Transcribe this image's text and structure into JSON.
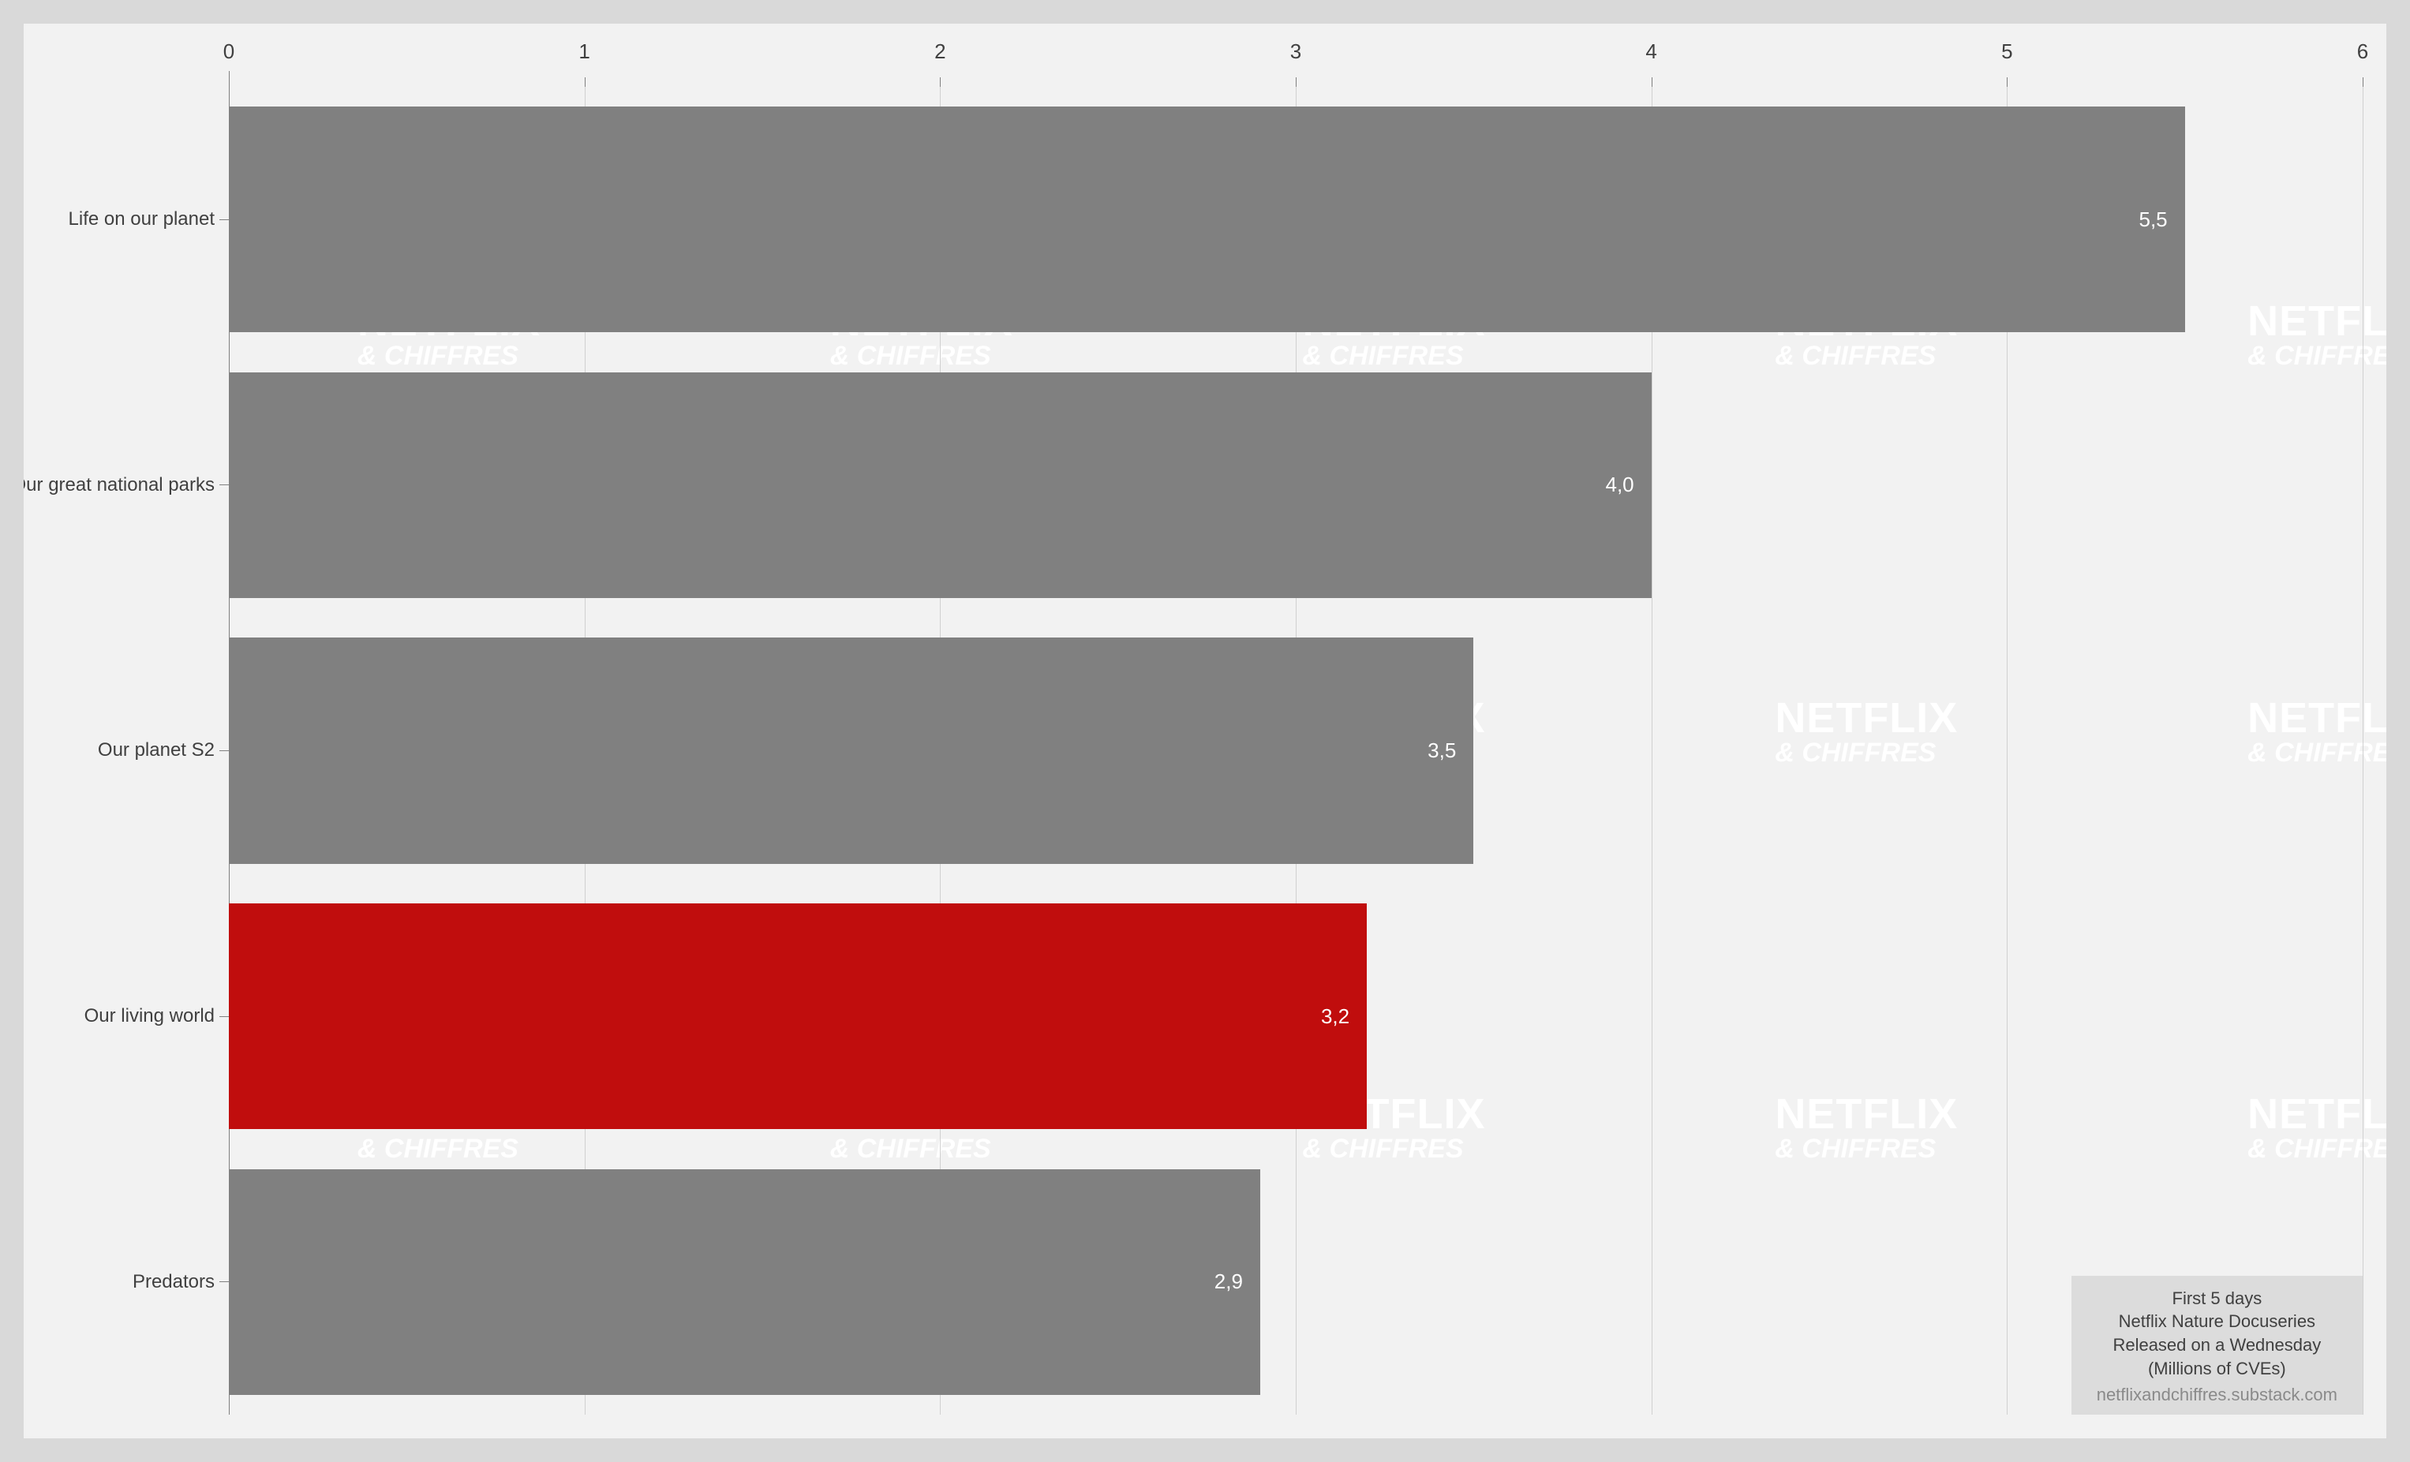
{
  "chart": {
    "type": "bar-horizontal",
    "xlim": [
      0,
      6
    ],
    "xtick_step": 1,
    "xticks": [
      "0",
      "1",
      "2",
      "3",
      "4",
      "5",
      "6"
    ],
    "tick_fontsize": 26,
    "label_fontsize": 24,
    "value_fontsize": 26,
    "background_color": "#f2f2f2",
    "outer_background": "#d9d9d9",
    "grid_color": "#d0d0d0",
    "axis_color": "#808080",
    "text_color": "#404040",
    "value_text_color": "#ffffff",
    "bar_default_color": "#808080",
    "bar_highlight_color": "#c00d0d",
    "bars": [
      {
        "label": "Life on our planet",
        "value": 5.5,
        "value_label": "5,5",
        "color": "#808080"
      },
      {
        "label": "Our great national parks",
        "value": 4.0,
        "value_label": "4,0",
        "color": "#808080"
      },
      {
        "label": "Our planet S2",
        "value": 3.5,
        "value_label": "3,5",
        "color": "#808080"
      },
      {
        "label": "Our living world",
        "value": 3.2,
        "value_label": "3,2",
        "color": "#c00d0d"
      },
      {
        "label": "Predators",
        "value": 2.9,
        "value_label": "2,9",
        "color": "#808080"
      }
    ],
    "caption": {
      "lines": [
        "First 5 days",
        "Netflix Nature Docuseries",
        "Released on a Wednesday",
        "(Millions of CVEs)"
      ],
      "source": "netflixandchiffres.substack.com",
      "fontsize": 22,
      "box_background": "#dcdcdc",
      "source_color": "#8a8a8a"
    },
    "watermark": {
      "line1": "NETFLIX",
      "line2": "& CHIFFRES",
      "color": "#ffffff",
      "line1_fontsize": 54,
      "line2_fontsize": 34
    }
  }
}
